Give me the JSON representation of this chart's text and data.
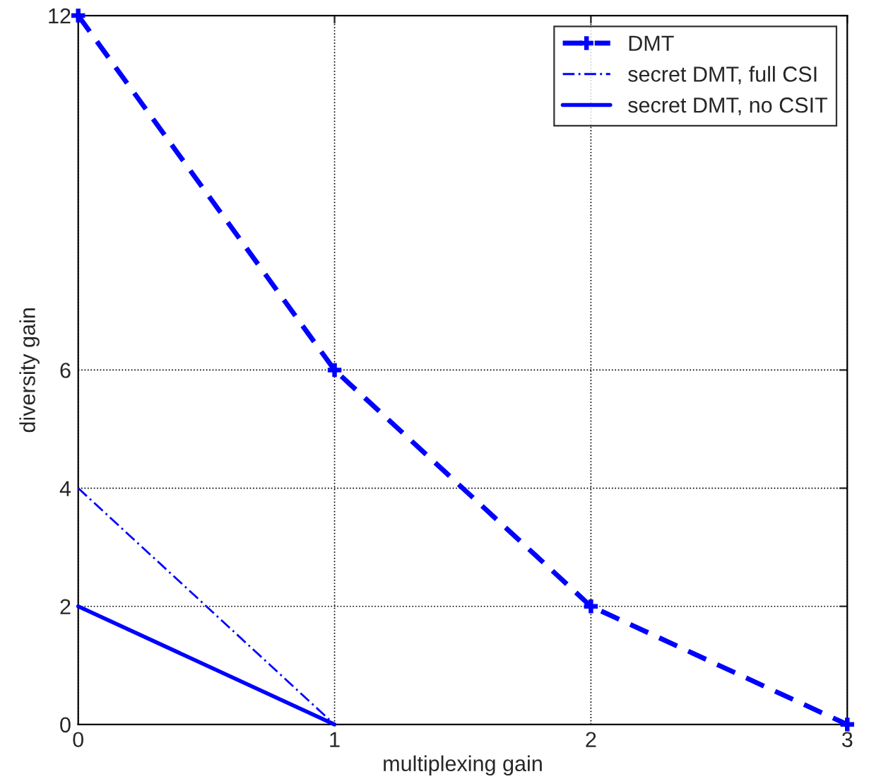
{
  "chart_data": {
    "type": "line",
    "xlabel": "multiplexing gain",
    "ylabel": "diversity gain",
    "xlim": [
      0,
      3
    ],
    "ylim": [
      0,
      12
    ],
    "xticks": [
      0,
      1,
      2,
      3
    ],
    "yticks": [
      0,
      2,
      4,
      6,
      12
    ],
    "grid": true,
    "legend": "top right",
    "series": [
      {
        "name": "DMT",
        "color": "#0000ff",
        "x": [
          0,
          1,
          2,
          3
        ],
        "values": [
          12,
          6,
          2,
          0
        ],
        "line_style": "dashed",
        "marker": "cross"
      },
      {
        "name": "secret DMT, full CSI",
        "color": "#0000ff",
        "x": [
          0,
          1
        ],
        "values": [
          4,
          0
        ],
        "line_style": "dashdot",
        "marker": "none"
      },
      {
        "name": "secret DMT, no CSIT",
        "color": "#0000ff",
        "x": [
          0,
          1
        ],
        "values": [
          2,
          0
        ],
        "line_style": "solid",
        "marker": "none"
      }
    ]
  }
}
